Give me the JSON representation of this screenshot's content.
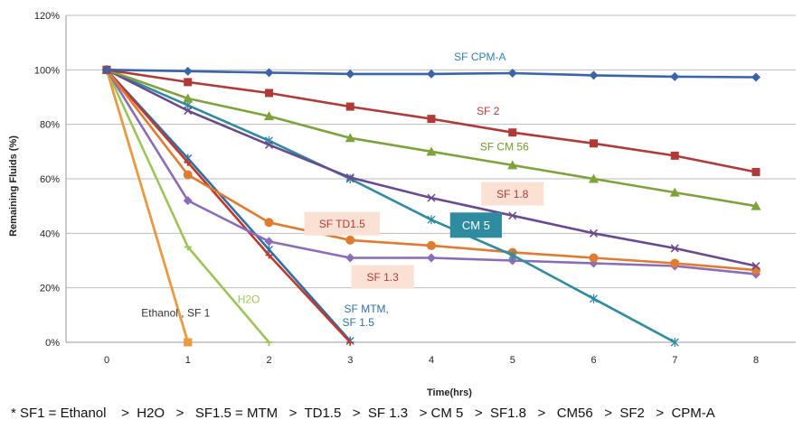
{
  "chart_data": {
    "type": "line",
    "title": "",
    "xlabel": "Time(hrs)",
    "ylabel": "Remaining Fluids (%)",
    "x": [
      0,
      1,
      2,
      3,
      4,
      5,
      6,
      7,
      8
    ],
    "xlim": [
      0,
      8
    ],
    "ylim": [
      0,
      120
    ],
    "yticks": [
      0,
      20,
      40,
      60,
      80,
      100,
      120
    ],
    "ytick_format": "percent",
    "grid": {
      "horizontal": true,
      "vertical": false
    },
    "legend": "none",
    "series": [
      {
        "label": "SF CPM-A",
        "color": "#3A64A8",
        "marker": "diamond",
        "points": [
          [
            0,
            100
          ],
          [
            1,
            99.5
          ],
          [
            2,
            99
          ],
          [
            3,
            98.5
          ],
          [
            4,
            98.5
          ],
          [
            5,
            98.8
          ],
          [
            6,
            98
          ],
          [
            7,
            97.5
          ],
          [
            8,
            97.3
          ]
        ]
      },
      {
        "label": "SF 2",
        "color": "#B03A37",
        "marker": "square",
        "points": [
          [
            0,
            100
          ],
          [
            1,
            95.5
          ],
          [
            2,
            91.5
          ],
          [
            3,
            86.5
          ],
          [
            4,
            82
          ],
          [
            5,
            77
          ],
          [
            6,
            73
          ],
          [
            7,
            68.5
          ],
          [
            8,
            62.5
          ]
        ]
      },
      {
        "label": "SF CM 56",
        "color": "#7EA23C",
        "marker": "triangle",
        "points": [
          [
            0,
            100
          ],
          [
            1,
            89.5
          ],
          [
            2,
            83
          ],
          [
            3,
            75
          ],
          [
            4,
            70
          ],
          [
            5,
            65
          ],
          [
            6,
            60
          ],
          [
            7,
            55
          ],
          [
            8,
            50
          ]
        ]
      },
      {
        "label": "SF 1.8",
        "color": "#6A4A8E",
        "marker": "x",
        "points": [
          [
            0,
            100
          ],
          [
            1,
            85
          ],
          [
            2,
            72.5
          ],
          [
            3,
            60.5
          ],
          [
            4,
            53
          ],
          [
            5,
            46.5
          ],
          [
            6,
            40
          ],
          [
            7,
            34.5
          ],
          [
            8,
            28
          ]
        ]
      },
      {
        "label": "CM 5",
        "color": "#2E8BA0",
        "marker": "star",
        "points": [
          [
            0,
            100
          ],
          [
            1,
            87
          ],
          [
            2,
            74
          ],
          [
            3,
            60
          ],
          [
            4,
            45
          ],
          [
            5,
            32
          ],
          [
            6,
            16
          ],
          [
            7,
            0
          ]
        ]
      },
      {
        "label": "SF TD1.5",
        "color": "#E07B30",
        "marker": "circle",
        "points": [
          [
            0,
            100
          ],
          [
            1,
            61.5
          ],
          [
            2,
            44
          ],
          [
            3,
            37.5
          ],
          [
            4,
            35.5
          ],
          [
            5,
            33
          ],
          [
            6,
            31
          ],
          [
            7,
            29
          ],
          [
            8,
            26.5
          ]
        ]
      },
      {
        "label": "SF 1.3",
        "color": "#8A6CB8",
        "marker": "diamond",
        "points": [
          [
            0,
            100
          ],
          [
            1,
            52
          ],
          [
            2,
            37
          ],
          [
            3,
            31
          ],
          [
            4,
            31
          ],
          [
            5,
            30
          ],
          [
            6,
            29
          ],
          [
            7,
            28
          ],
          [
            8,
            25
          ]
        ]
      },
      {
        "label": "SF MTM, SF 1.5",
        "color": "#C0392B",
        "marker": "dash",
        "points": [
          [
            0,
            100
          ],
          [
            1,
            66
          ],
          [
            2,
            32
          ],
          [
            3,
            0
          ]
        ]
      },
      {
        "label": "SF MTM, SF 1.5 (b)",
        "color": "#2E6FA8",
        "marker": "star",
        "points": [
          [
            0,
            100
          ],
          [
            1,
            67.5
          ],
          [
            2,
            34
          ],
          [
            3,
            0.5
          ]
        ]
      },
      {
        "label": "H2O",
        "color": "#9DC45A",
        "marker": "dash",
        "points": [
          [
            0,
            100
          ],
          [
            1,
            35
          ],
          [
            2,
            0
          ]
        ]
      },
      {
        "label": "Ethanol, SF 1",
        "color": "#F0983A",
        "marker": "square",
        "points": [
          [
            0,
            100
          ],
          [
            1,
            0
          ]
        ]
      },
      {
        "label": "Ethanol, SF 1 (b)",
        "color": "#4AA0C0",
        "marker": "square",
        "points": [
          [
            0,
            100
          ],
          [
            1,
            0
          ]
        ]
      }
    ],
    "annotations": [
      {
        "text": "SF CPM-A",
        "color": "#2E7FB0",
        "style": "plain",
        "at": [
          4.6,
          103.5
        ]
      },
      {
        "text": "SF 2",
        "color": "#B03A37",
        "style": "plain",
        "at": [
          4.7,
          83.5
        ]
      },
      {
        "text": "SF CM 56",
        "color": "#6F9A2E",
        "style": "plain",
        "at": [
          4.9,
          70.5
        ]
      },
      {
        "text": "SF 1.8",
        "color": "#B03A37",
        "style": "box-peach",
        "at": [
          5.0,
          54.5
        ]
      },
      {
        "text": "SF TD1.5",
        "color": "#B03A37",
        "style": "box-peach",
        "at": [
          2.9,
          43.5
        ]
      },
      {
        "text": "CM 5",
        "color": "#ffffff",
        "style": "box-teal",
        "at": [
          4.55,
          43
        ]
      },
      {
        "text": "SF 1.3",
        "color": "#B03A37",
        "style": "box-peach",
        "at": [
          3.4,
          24
        ]
      },
      {
        "text": "SF MTM,",
        "color": "#2E6FA8",
        "style": "plain",
        "at": [
          3.2,
          11
        ]
      },
      {
        "text": "SF 1.5",
        "color": "#2E6FA8",
        "style": "plain",
        "at": [
          3.1,
          6
        ]
      },
      {
        "text": "H2O",
        "color": "#9DC45A",
        "style": "plain",
        "at": [
          1.75,
          14.5
        ]
      },
      {
        "text": "Ethanol , SF 1",
        "color": "#333333",
        "style": "plain",
        "at": [
          0.85,
          9.5
        ]
      }
    ]
  },
  "footnote": "* SF1 = Ethanol    >  H2O   >   SF1.5 = MTM   >  TD1.5   >  SF 1.3   > CM 5   >  SF1.8   >   CM56   >  SF2   >  CPM-A"
}
